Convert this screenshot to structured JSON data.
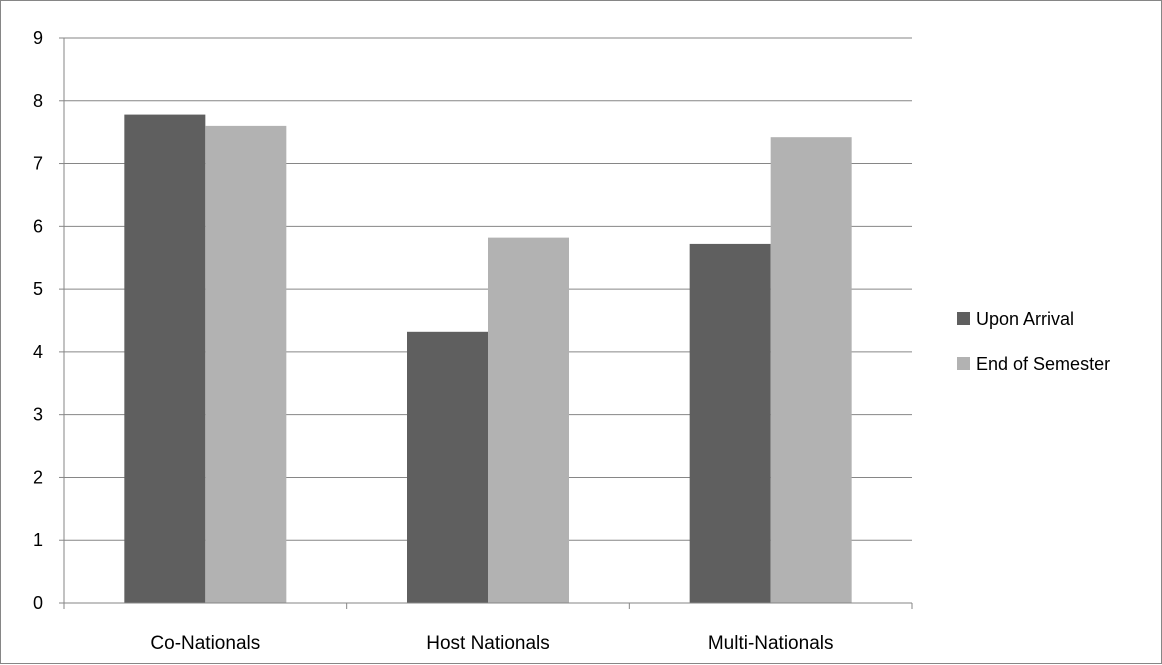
{
  "chart_data": {
    "type": "bar",
    "categories": [
      "Co-Nationals",
      "Host Nationals",
      "Multi-Nationals"
    ],
    "series": [
      {
        "name": "Upon Arrival",
        "values": [
          7.78,
          4.32,
          5.72
        ],
        "color": "#5f5f5f"
      },
      {
        "name": "End of Semester",
        "values": [
          7.6,
          5.82,
          7.42
        ],
        "color": "#b2b2b2"
      }
    ],
    "ylim": [
      0,
      9
    ],
    "yticks": [
      "0",
      "1",
      "2",
      "3",
      "4",
      "5",
      "6",
      "7",
      "8",
      "9"
    ],
    "grid": true,
    "legend_position": "right"
  }
}
